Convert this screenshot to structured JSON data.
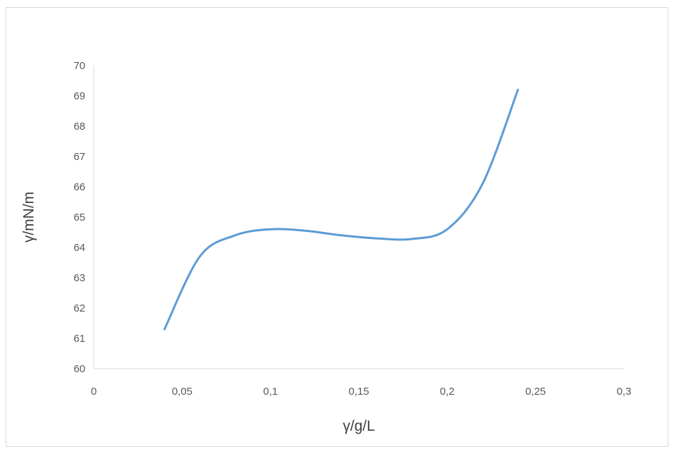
{
  "chart_data": {
    "type": "line",
    "title": "",
    "xlabel": "γ/g/L",
    "ylabel": "γ/mN/m",
    "xlim": [
      0,
      0.3
    ],
    "ylim": [
      60,
      70
    ],
    "x_ticks": [
      "0",
      "0,05",
      "0,1",
      "0,15",
      "0,2",
      "0,25",
      "0,3"
    ],
    "y_ticks": [
      "60",
      "61",
      "62",
      "63",
      "64",
      "65",
      "66",
      "67",
      "68",
      "69",
      "70"
    ],
    "grid": false,
    "legend": "none",
    "line_color": "#5b9bd5",
    "smoothed": true,
    "series": [
      {
        "x": [
          0.04,
          0.06,
          0.08,
          0.1,
          0.12,
          0.14,
          0.16,
          0.18,
          0.2,
          0.22,
          0.24
        ],
        "y": [
          61.3,
          63.7,
          64.4,
          64.6,
          64.55,
          64.4,
          64.3,
          64.28,
          64.6,
          66.1,
          69.2
        ]
      }
    ]
  }
}
